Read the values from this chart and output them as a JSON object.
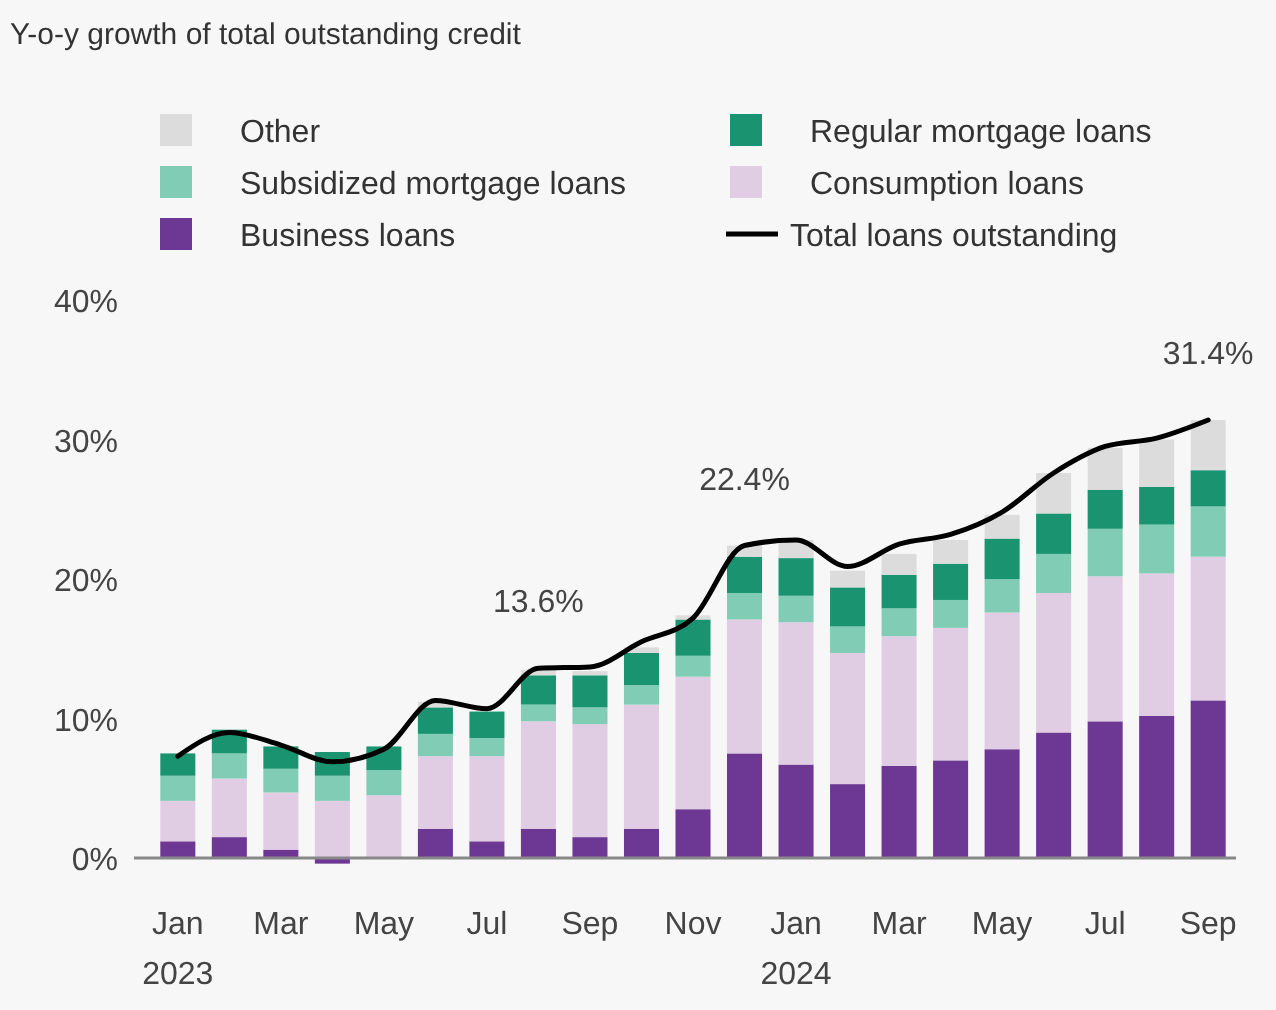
{
  "chart_data": {
    "type": "bar",
    "title": "Y-o-y growth of total outstanding credit",
    "stacked": true,
    "legend": "top",
    "grid": false,
    "categories": [
      "Jan\n2023",
      null,
      "Mar",
      null,
      "May",
      null,
      "Jul",
      null,
      "Sep",
      null,
      "Nov",
      null,
      "Jan\n2024",
      null,
      "Mar",
      null,
      "May",
      null,
      "Jul",
      null,
      "Sep"
    ],
    "ylim": [
      -1,
      40
    ],
    "yticks": [
      {
        "value": 0,
        "label": "0%"
      },
      {
        "value": 10,
        "label": "10%"
      },
      {
        "value": 20,
        "label": "20%"
      },
      {
        "value": 30,
        "label": "30%"
      },
      {
        "value": 40,
        "label": "40%"
      }
    ],
    "series": [
      {
        "name": "Business loans",
        "color": "#6d3794",
        "values": [
          1.2,
          1.5,
          0.6,
          -0.4,
          0,
          2.1,
          1.2,
          2.1,
          1.5,
          2.1,
          3.5,
          7.5,
          6.7,
          5.3,
          6.6,
          7.0,
          7.8,
          9.0,
          9.8,
          10.2,
          11.3
        ]
      },
      {
        "name": "Consumption loans",
        "color": "#e0cce3",
        "values": [
          2.9,
          4.2,
          4.1,
          4.1,
          4.5,
          5.2,
          6.1,
          7.7,
          8.1,
          8.9,
          9.5,
          9.6,
          10.2,
          9.4,
          9.3,
          9.5,
          9.8,
          10.0,
          10.4,
          10.2,
          10.3
        ]
      },
      {
        "name": "Subsidized mortgage loans",
        "color": "#80ccb5",
        "values": [
          1.8,
          1.8,
          1.7,
          1.8,
          1.8,
          1.6,
          1.3,
          1.2,
          1.2,
          1.4,
          1.5,
          1.9,
          1.9,
          1.9,
          2.0,
          2.0,
          2.4,
          2.8,
          3.4,
          3.5,
          3.6
        ]
      },
      {
        "name": "Regular mortgage loans",
        "color": "#1a9470",
        "values": [
          1.6,
          1.7,
          1.6,
          1.7,
          1.7,
          1.9,
          1.9,
          2.1,
          2.3,
          2.3,
          2.6,
          2.6,
          2.7,
          2.8,
          2.4,
          2.6,
          2.9,
          2.9,
          2.8,
          2.7,
          2.6
        ]
      },
      {
        "name": "Other",
        "color": "#dcdcdc",
        "values": [
          null,
          null,
          null,
          null,
          null,
          0.4,
          null,
          0.4,
          0.3,
          0.4,
          0.3,
          0.8,
          1.3,
          1.2,
          1.5,
          1.7,
          1.7,
          2.9,
          3.0,
          3.4,
          3.6
        ]
      },
      {
        "name": "Total loans outstanding",
        "type": "line",
        "color": "#000000",
        "values": [
          7.3,
          9.0,
          8.1,
          6.9,
          7.8,
          11.3,
          10.7,
          13.6,
          13.7,
          15.5,
          17.2,
          22.4,
          22.8,
          20.9,
          22.5,
          23.2,
          24.8,
          27.6,
          29.5,
          30.1,
          31.4
        ],
        "value_labels": [
          null,
          null,
          null,
          null,
          null,
          null,
          null,
          "13.6%",
          null,
          null,
          null,
          "22.4%",
          null,
          null,
          null,
          null,
          null,
          null,
          null,
          null,
          "31.4%"
        ]
      }
    ]
  }
}
